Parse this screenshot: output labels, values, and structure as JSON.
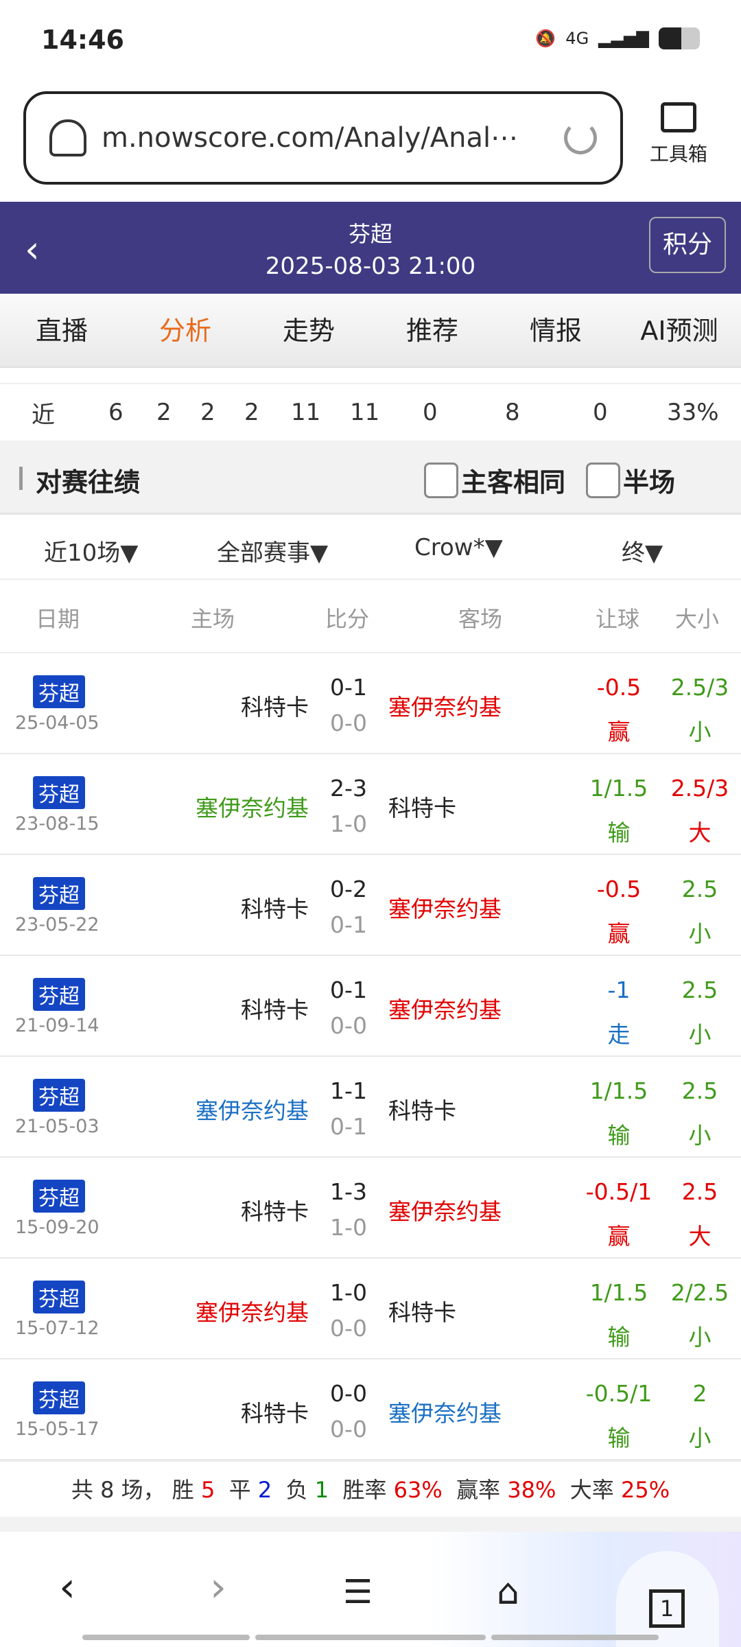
{
  "status": {
    "time": "14:46",
    "network": "4G"
  },
  "browser": {
    "url": "m.nowscore.com/Analy/Anal⋯",
    "toolbox_label": "工具箱"
  },
  "header": {
    "league": "芬超",
    "datetime": "2025-08-03 21:00",
    "points_button": "积分"
  },
  "tabs": [
    {
      "label": "直播"
    },
    {
      "label": "分析",
      "active": true
    },
    {
      "label": "走势"
    },
    {
      "label": "推荐"
    },
    {
      "label": "情报"
    },
    {
      "label": "AI预测"
    }
  ],
  "stats_row": [
    "近",
    "6",
    "2",
    "2",
    "2",
    "11",
    "11",
    "0",
    "8",
    "0",
    "33%"
  ],
  "section": {
    "title": "对赛往绩",
    "same_home_away": "主客相同",
    "half_time": "半场"
  },
  "filters": [
    "近10场▼",
    "全部赛事▼",
    "Crow*▼",
    "终▼"
  ],
  "columns": [
    "日期",
    "主场",
    "比分",
    "客场",
    "让球",
    "大小"
  ],
  "colors": {
    "red": "#e20000",
    "green": "#3f9a1a",
    "blue": "#1a6fc4",
    "header": "#3f3a82",
    "active_tab": "#e86b1c",
    "badge": "#1446c4"
  },
  "matches": [
    {
      "league": "芬超",
      "date": "25-04-05",
      "home": "科特卡",
      "home_color": "dark",
      "score": "0-1",
      "half": "0-0",
      "away": "塞伊奈约基",
      "away_color": "red",
      "handicap": "-0.5",
      "hc_result": "赢",
      "hc_color": "red",
      "ou": "2.5/3",
      "ou_result": "小",
      "ou_color": "green"
    },
    {
      "league": "芬超",
      "date": "23-08-15",
      "home": "塞伊奈约基",
      "home_color": "green",
      "score": "2-3",
      "half": "1-0",
      "away": "科特卡",
      "away_color": "dark",
      "handicap": "1/1.5",
      "hc_result": "输",
      "hc_color": "green",
      "ou": "2.5/3",
      "ou_result": "大",
      "ou_color": "red"
    },
    {
      "league": "芬超",
      "date": "23-05-22",
      "home": "科特卡",
      "home_color": "dark",
      "score": "0-2",
      "half": "0-1",
      "away": "塞伊奈约基",
      "away_color": "red",
      "handicap": "-0.5",
      "hc_result": "赢",
      "hc_color": "red",
      "ou": "2.5",
      "ou_result": "小",
      "ou_color": "green"
    },
    {
      "league": "芬超",
      "date": "21-09-14",
      "home": "科特卡",
      "home_color": "dark",
      "score": "0-1",
      "half": "0-0",
      "away": "塞伊奈约基",
      "away_color": "red",
      "handicap": "-1",
      "hc_result": "走",
      "hc_color": "blue",
      "ou": "2.5",
      "ou_result": "小",
      "ou_color": "green"
    },
    {
      "league": "芬超",
      "date": "21-05-03",
      "home": "塞伊奈约基",
      "home_color": "blue",
      "score": "1-1",
      "half": "0-1",
      "away": "科特卡",
      "away_color": "dark",
      "handicap": "1/1.5",
      "hc_result": "输",
      "hc_color": "green",
      "ou": "2.5",
      "ou_result": "小",
      "ou_color": "green"
    },
    {
      "league": "芬超",
      "date": "15-09-20",
      "home": "科特卡",
      "home_color": "dark",
      "score": "1-3",
      "half": "1-0",
      "away": "塞伊奈约基",
      "away_color": "red",
      "handicap": "-0.5/1",
      "hc_result": "赢",
      "hc_color": "red",
      "ou": "2.5",
      "ou_result": "大",
      "ou_color": "red"
    },
    {
      "league": "芬超",
      "date": "15-07-12",
      "home": "塞伊奈约基",
      "home_color": "red",
      "score": "1-0",
      "half": "0-0",
      "away": "科特卡",
      "away_color": "dark",
      "handicap": "1/1.5",
      "hc_result": "输",
      "hc_color": "green",
      "ou": "2/2.5",
      "ou_result": "小",
      "ou_color": "green"
    },
    {
      "league": "芬超",
      "date": "15-05-17",
      "home": "科特卡",
      "home_color": "dark",
      "score": "0-0",
      "half": "0-0",
      "away": "塞伊奈约基",
      "away_color": "blue",
      "handicap": "-0.5/1",
      "hc_result": "输",
      "hc_color": "green",
      "ou": "2",
      "ou_result": "小",
      "ou_color": "green"
    }
  ],
  "summary": {
    "total": "共 8 场，",
    "win_label": "胜",
    "win": "5",
    "draw_label": "平",
    "draw": "2",
    "loss_label": "负",
    "loss": "1",
    "win_rate_label": "胜率",
    "win_rate": "63%",
    "hc_rate_label": "赢率",
    "hc_rate": "38%",
    "over_rate_label": "大率",
    "over_rate": "25%"
  },
  "bottom_nav": {
    "tab_count": "1"
  }
}
